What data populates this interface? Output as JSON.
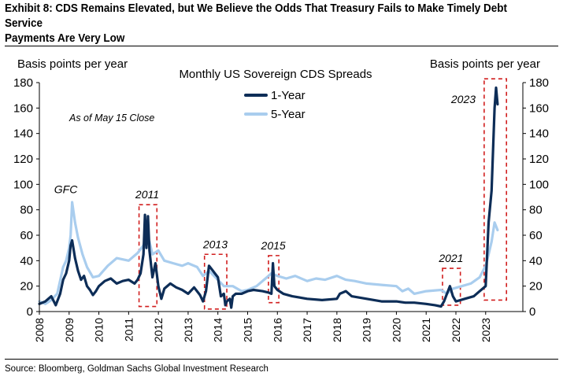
{
  "header": {
    "title_line1": "Exhibit 8: CDS Remains Elevated, but We Believe the Odds That Treasury Fails to Make Timely Debt Service",
    "title_line2": "Payments Are Very Low"
  },
  "footer": {
    "source": "Source: Bloomberg, Goldman Sachs Global Investment Research"
  },
  "colors": {
    "one_year": "#0d2d57",
    "five_year": "#a9cdee",
    "highlight_box": "#d11f1f"
  },
  "chart_data": {
    "type": "line",
    "title": "Monthly US Sovereign CDS Spreads",
    "subtitle": "As of May 15 Close",
    "ylabel_left": "Basis points per year",
    "ylabel_right": "Basis points per year",
    "ylim": [
      0,
      180
    ],
    "yticks": [
      0,
      20,
      40,
      60,
      80,
      100,
      120,
      140,
      160,
      180
    ],
    "xlim": [
      2008,
      2024.25
    ],
    "xticks": [
      "2008",
      "2009",
      "2010",
      "2011",
      "2012",
      "2013",
      "2014",
      "2015",
      "2016",
      "2017",
      "2018",
      "2019",
      "2020",
      "2021",
      "2022",
      "2023"
    ],
    "grid": false,
    "legend_position": "top-center",
    "series": [
      {
        "name": "1-Year",
        "color": "#0d2d57",
        "x": [
          2008.0,
          2008.2,
          2008.4,
          2008.55,
          2008.7,
          2008.8,
          2008.9,
          2009.0,
          2009.05,
          2009.1,
          2009.2,
          2009.3,
          2009.4,
          2009.5,
          2009.6,
          2009.7,
          2009.8,
          2009.9,
          2010.0,
          2010.2,
          2010.4,
          2010.6,
          2010.8,
          2011.0,
          2011.2,
          2011.3,
          2011.4,
          2011.5,
          2011.55,
          2011.6,
          2011.65,
          2011.7,
          2011.8,
          2011.9,
          2012.0,
          2012.1,
          2012.15,
          2012.2,
          2012.4,
          2012.6,
          2012.8,
          2013.0,
          2013.2,
          2013.4,
          2013.5,
          2013.6,
          2013.7,
          2013.8,
          2013.9,
          2014.0,
          2014.1,
          2014.2,
          2014.25,
          2014.3,
          2014.4,
          2014.45,
          2014.5,
          2014.6,
          2014.8,
          2015.0,
          2015.2,
          2015.5,
          2015.7,
          2015.8,
          2015.85,
          2015.9,
          2016.0,
          2016.2,
          2016.5,
          2017.0,
          2017.5,
          2018.0,
          2018.1,
          2018.3,
          2018.5,
          2019.0,
          2019.5,
          2020.0,
          2020.3,
          2020.6,
          2021.0,
          2021.3,
          2021.5,
          2021.6,
          2021.7,
          2021.8,
          2021.9,
          2022.0,
          2022.3,
          2022.6,
          2022.8,
          2022.9,
          2023.0,
          2023.1,
          2023.2,
          2023.3,
          2023.35,
          2023.4
        ],
        "values": [
          6,
          8,
          12,
          5,
          14,
          25,
          30,
          40,
          52,
          56,
          42,
          32,
          25,
          28,
          20,
          17,
          13,
          16,
          20,
          24,
          26,
          22,
          24,
          25,
          22,
          25,
          30,
          45,
          76,
          50,
          75,
          48,
          27,
          38,
          20,
          10,
          14,
          18,
          22,
          19,
          17,
          14,
          19,
          13,
          8,
          16,
          36,
          33,
          30,
          27,
          12,
          14,
          5,
          8,
          10,
          3,
          12,
          14,
          14,
          16,
          17,
          16,
          15,
          14,
          38,
          20,
          17,
          14,
          12,
          10,
          9,
          10,
          14,
          16,
          12,
          10,
          8,
          8,
          7,
          7,
          6,
          5,
          4,
          8,
          14,
          20,
          12,
          8,
          10,
          12,
          16,
          18,
          20,
          70,
          95,
          160,
          176,
          163
        ]
      },
      {
        "name": "5-Year",
        "color": "#a9cdee",
        "x": [
          2008.0,
          2008.2,
          2008.4,
          2008.6,
          2008.8,
          2008.9,
          2009.0,
          2009.05,
          2009.1,
          2009.2,
          2009.3,
          2009.45,
          2009.6,
          2009.8,
          2010.0,
          2010.3,
          2010.6,
          2011.0,
          2011.3,
          2011.5,
          2011.6,
          2011.7,
          2011.8,
          2012.0,
          2012.2,
          2012.5,
          2012.8,
          2013.0,
          2013.3,
          2013.5,
          2013.7,
          2014.0,
          2014.2,
          2014.5,
          2014.8,
          2015.0,
          2015.3,
          2015.6,
          2015.8,
          2016.0,
          2016.3,
          2016.6,
          2017.0,
          2017.3,
          2017.6,
          2018.0,
          2018.3,
          2018.6,
          2019.0,
          2019.5,
          2020.0,
          2020.2,
          2020.4,
          2020.6,
          2021.0,
          2021.5,
          2021.7,
          2021.9,
          2022.2,
          2022.5,
          2022.8,
          2023.0,
          2023.1,
          2023.2,
          2023.3,
          2023.4
        ],
        "values": [
          8,
          6,
          9,
          14,
          35,
          40,
          50,
          60,
          86,
          70,
          58,
          45,
          35,
          27,
          28,
          36,
          42,
          40,
          46,
          52,
          60,
          55,
          45,
          48,
          40,
          38,
          36,
          38,
          35,
          28,
          32,
          25,
          20,
          20,
          16,
          17,
          20,
          26,
          30,
          28,
          26,
          28,
          24,
          26,
          25,
          28,
          25,
          24,
          22,
          21,
          20,
          16,
          18,
          14,
          16,
          17,
          14,
          18,
          20,
          22,
          27,
          36,
          45,
          55,
          70,
          64
        ]
      }
    ],
    "annotations": [
      {
        "label": "GFC",
        "x": 2009.1,
        "y": 93
      },
      {
        "label": "2011",
        "start": 2011.35,
        "end": 2011.95,
        "ymin": 4,
        "ymax": 84
      },
      {
        "label": "2013",
        "start": 2013.55,
        "end": 2014.3,
        "ymin": 2,
        "ymax": 45
      },
      {
        "label": "2015",
        "start": 2015.7,
        "end": 2016.05,
        "ymin": 7,
        "ymax": 44
      },
      {
        "label": "2021",
        "start": 2021.55,
        "end": 2022.15,
        "ymin": 5,
        "ymax": 34
      },
      {
        "label": "2023",
        "start": 2022.95,
        "end": 2023.7,
        "ymin": 9,
        "ymax": 183
      }
    ]
  }
}
